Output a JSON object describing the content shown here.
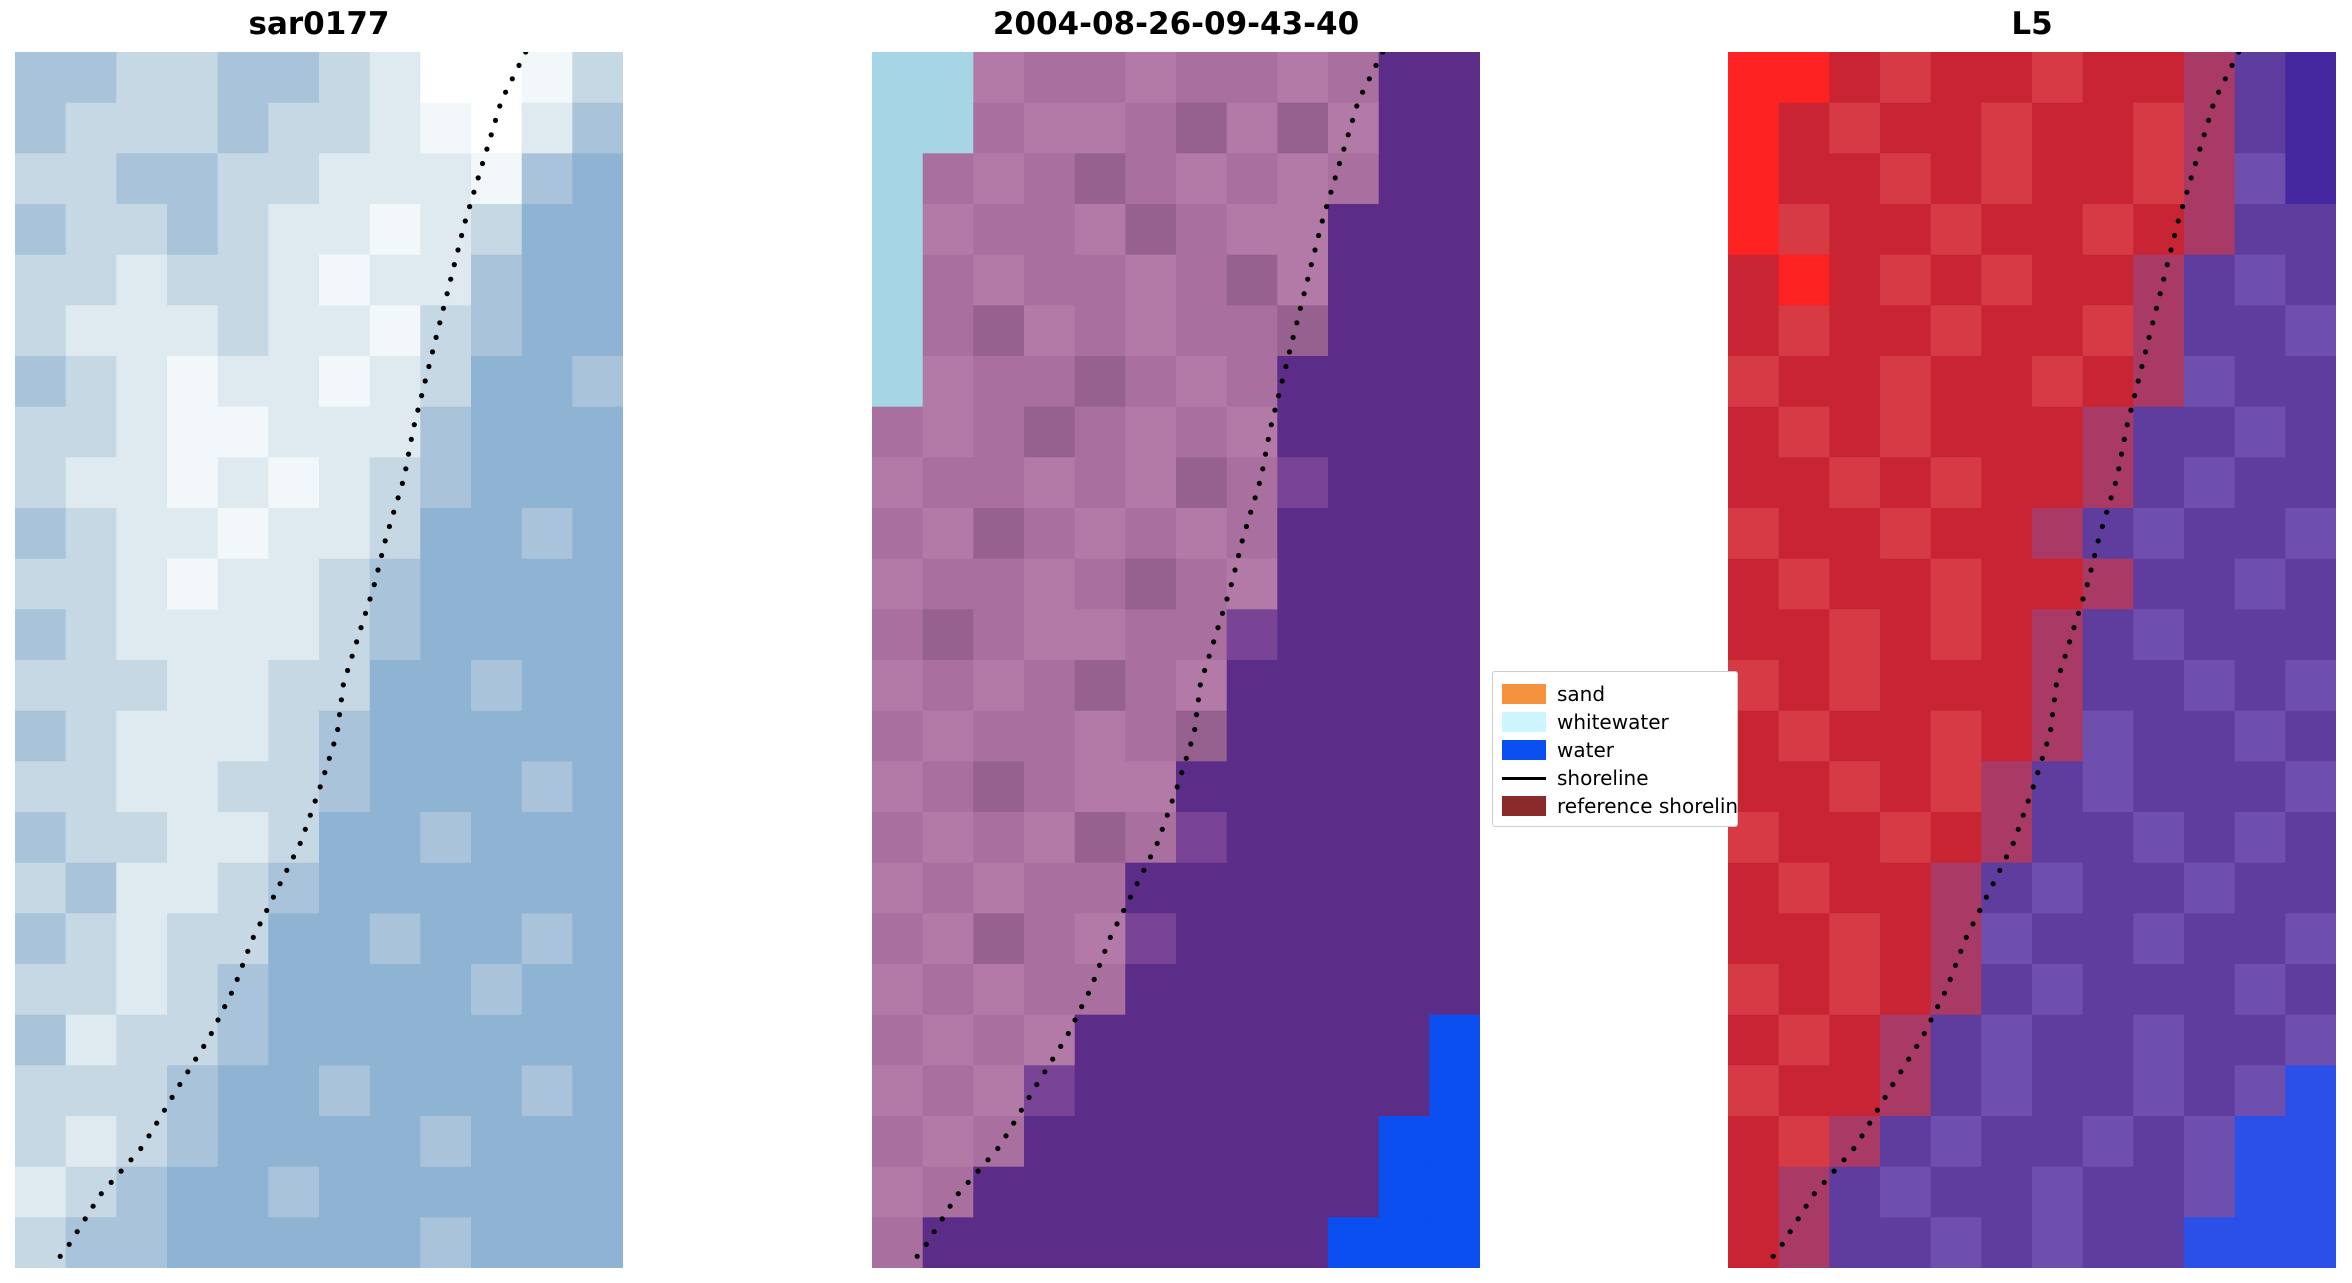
{
  "chart_data": {
    "type": "heatmap",
    "title": "",
    "axes": "off",
    "layout": "three image panels side by side, shared dotted shoreline overlay, legend between panel 2 and panel 3",
    "panels": [
      {
        "title": "sar0177",
        "description": "SAR backscatter image, pale blue tones, brighter band along shoreline",
        "palette": {
          "a": "#8fb3d2",
          "b": "#a9c4da",
          "c": "#c6d8e4",
          "d": "#dfeaf0",
          "e": "#f2f8fa",
          "w": "#ffffff"
        },
        "grid": [
          "bbccbbcdwwec",
          "bcccbccdewdb",
          "ccbbccdddeba",
          "bccbcddedcaa",
          "ccdccdeddbaa",
          "cdddcddecbaa",
          "bcdeddedcaab",
          "ccdeedddbaaa",
          "cddededcbaaa",
          "bcddeddcaaba",
          "ccdeddcbaaaa",
          "bcddddcbaaaa",
          "cccddccaabaa",
          "bcdddcbaaaaa",
          "ccddccbaaaba",
          "bccddcaabaaa",
          "cbddcbaaaaaa",
          "bcdccaabaaba",
          "ccdcbaaaabaa",
          "bdccbaaaaaaa",
          "cccbaabaaaba",
          "cdcbaaaabaaa",
          "dcbaabaaaaaa",
          "cbbaaaaabaaa"
        ]
      },
      {
        "title": "2004-08-26-09-43-40",
        "description": "Classified optical scene: mauve land, dark purple water, cyan whitewater notch top-left, bright blue water wedge bottom-right",
        "palette": {
          "m": "#a86f9f",
          "n": "#b47aa7",
          "o": "#96608f",
          "q": "#7a4496",
          "p": "#5b2d88",
          "u": "#0b4ff0",
          "v": "#a6d6e6"
        },
        "grid": [
          "vvnmmnmmnmpp",
          "vvmnnmononpp",
          "vmnmomnmnmpp",
          "vnmmnomnnppp",
          "vmnmmnmonppp",
          "vmonmnmmoppp",
          "vnmmomnmpppp",
          "mnmomnmnpppp",
          "nmmnmnomqppp",
          "mnomnmnmpppp",
          "nmmnmomnpppp",
          "momnnmmqpppp",
          "nmnmomnppppp",
          "mnmmnmoppppp",
          "nmomnnpppppp",
          "mnmnomqppppp",
          "nmnmmppppppp",
          "mnomnqpppppp",
          "nmnmmppppppp",
          "mnmnpppppppu",
          "nmnqpppppppu",
          "mnmpppppppuu",
          "nmppppppppuu",
          "mppppppppuuu"
        ]
      },
      {
        "title": "L5",
        "description": "Landsat 5 false-colour: red land, purple water, bright red patch top-left, dark indigo top-right, bright blue wedge bottom-right",
        "palette": {
          "R": "#ff2222",
          "r": "#c92434",
          "s": "#d63a45",
          "x": "#a93a66",
          "y": "#5e3d9e",
          "z": "#6f4fae",
          "k": "#4527a0",
          "u": "#2a50e8"
        },
        "grid": [
          "RRrsrrsrrxyk",
          "Rrsrrsrrsxyk",
          "Rrrsrsrrsxzk",
          "Rsrrsrrsrxyy",
          "rRrsrsrrxyzy",
          "rsrrsrrsxyyz",
          "srrsrrsrxzyy",
          "rsrsrrrxyyzy",
          "rrsrsrrxyzyy",
          "srrsrrxyzyyz",
          "rsrrsrrxyyzy",
          "rrsrsrxyzyyy",
          "srsrrrxyyzyz",
          "rsrrsrxzyyzy",
          "rrsrsxyzyyyz",
          "srrsrxyyzyzy",
          "rsrrxyzyyzyy",
          "rrsrxzyyzyyz",
          "srsrxyzyyyzy",
          "rsrxyzyyzyyz",
          "srrxyzyyzyzu",
          "rsxyzyyzyzuu",
          "rxyzyyzyyzuu",
          "rxyyzyzyyuuu"
        ]
      }
    ],
    "shoreline": {
      "color": "#000000",
      "style": "dotted",
      "points": [
        [
          0.84,
          0.0
        ],
        [
          0.8,
          0.04
        ],
        [
          0.77,
          0.09
        ],
        [
          0.74,
          0.14
        ],
        [
          0.715,
          0.19
        ],
        [
          0.695,
          0.23
        ],
        [
          0.675,
          0.27
        ],
        [
          0.655,
          0.31
        ],
        [
          0.64,
          0.35
        ],
        [
          0.61,
          0.4
        ],
        [
          0.59,
          0.44
        ],
        [
          0.565,
          0.48
        ],
        [
          0.54,
          0.52
        ],
        [
          0.53,
          0.56
        ],
        [
          0.505,
          0.6
        ],
        [
          0.47,
          0.65
        ],
        [
          0.43,
          0.69
        ],
        [
          0.39,
          0.73
        ],
        [
          0.36,
          0.77
        ],
        [
          0.32,
          0.81
        ],
        [
          0.27,
          0.85
        ],
        [
          0.21,
          0.9
        ],
        [
          0.14,
          0.94
        ],
        [
          0.09,
          0.98
        ],
        [
          0.06,
          1.0
        ]
      ]
    },
    "legend": {
      "position": "center-right, between panel 2 and panel 3",
      "border_color": "#cccccc",
      "background": "#ffffff",
      "entries": [
        {
          "type": "patch",
          "color": "#f5923e",
          "label": "sand"
        },
        {
          "type": "patch",
          "color": "#ccf5ff",
          "label": "whitewater"
        },
        {
          "type": "patch",
          "color": "#0a50f0",
          "label": "water"
        },
        {
          "type": "line",
          "color": "#000000",
          "label": "shoreline"
        },
        {
          "type": "patch",
          "color": "#8b2a2a",
          "label": "reference shoreline"
        }
      ]
    }
  }
}
